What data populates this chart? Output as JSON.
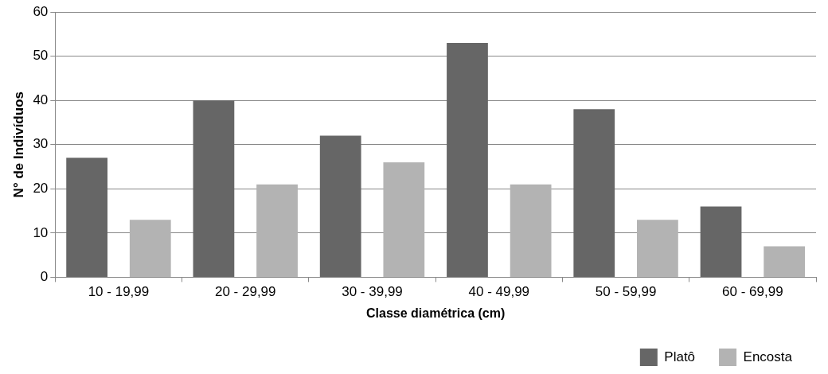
{
  "chart_data": {
    "type": "bar",
    "xlabel": "Classe diamétrica (cm)",
    "ylabel": "N° de Indivíduos",
    "categories": [
      "10 - 19,99",
      "20 - 29,99",
      "30 - 39,99",
      "40 - 49,99",
      "50 - 59,99",
      "60 - 69,99"
    ],
    "series": [
      {
        "name": "Platô",
        "color": "#666666",
        "values": [
          27,
          40,
          32,
          53,
          38,
          16
        ]
      },
      {
        "name": "Encosta",
        "color": "#b3b3b3",
        "values": [
          13,
          21,
          26,
          21,
          13,
          7
        ]
      }
    ],
    "ylim": [
      0,
      60
    ],
    "yticks": [
      0,
      10,
      20,
      30,
      40,
      50,
      60
    ],
    "grid": "y",
    "legend": "bottom right"
  }
}
